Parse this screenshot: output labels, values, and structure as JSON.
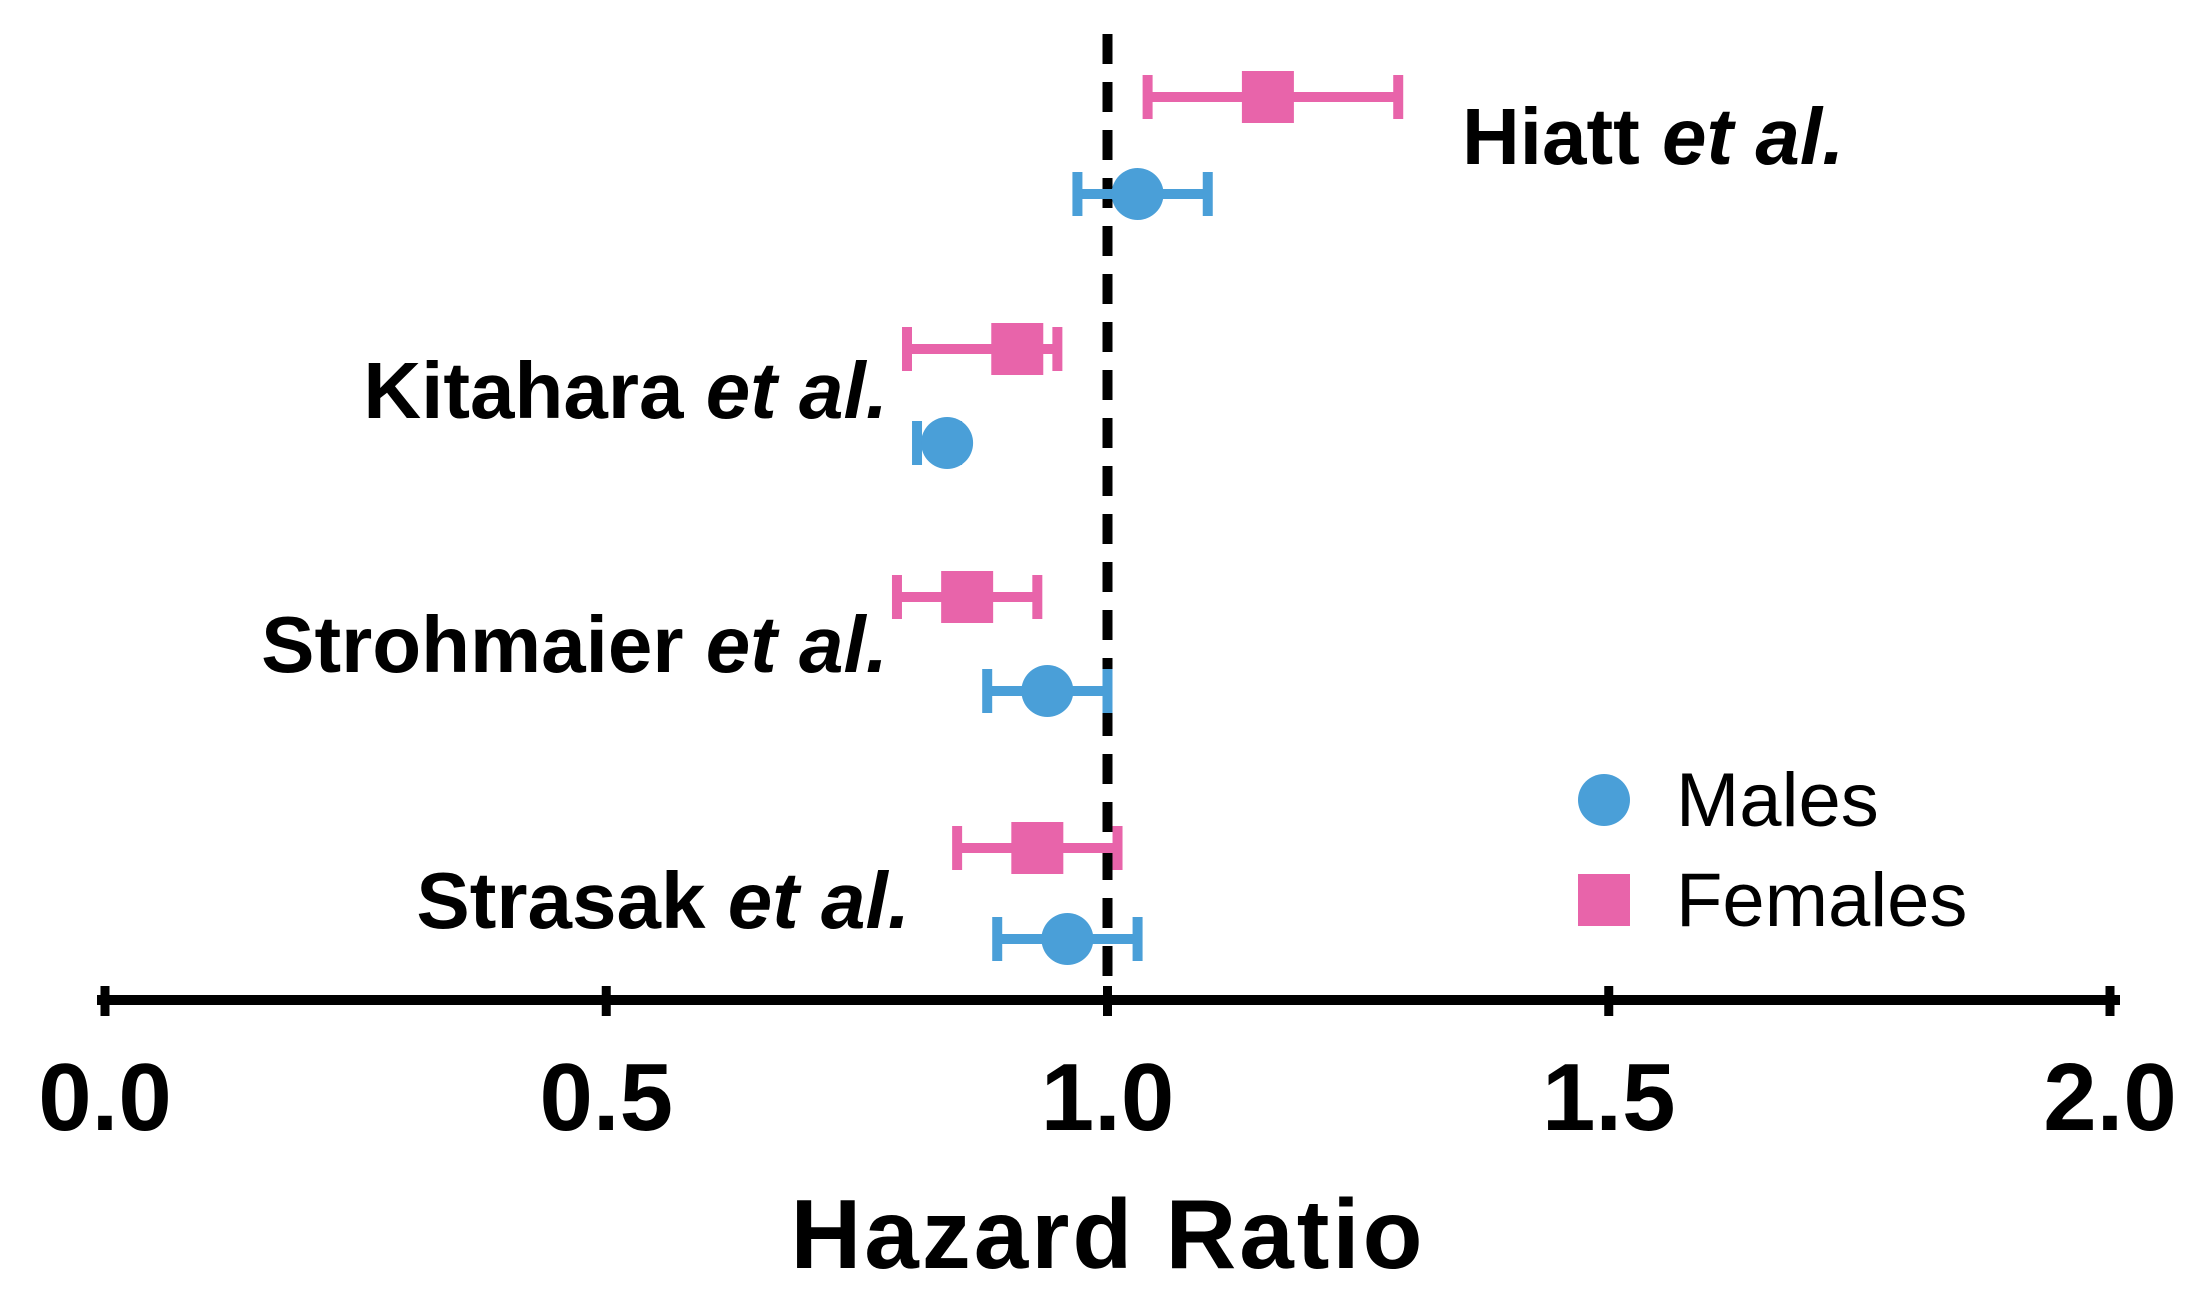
{
  "chart_data": {
    "type": "forest",
    "xlabel": "Hazard Ratio",
    "xlim": [
      0.0,
      2.0
    ],
    "x_ticks": [
      "0.0",
      "0.5",
      "1.0",
      "1.5",
      "2.0"
    ],
    "reference_line": 1.0,
    "legend_position": "bottom-right",
    "series": [
      {
        "name": "Males",
        "marker": "circle",
        "color": "#4A9FD8",
        "points": [
          {
            "study": "Hiatt",
            "hr": 1.03,
            "ci_low": 0.97,
            "ci_high": 1.1
          },
          {
            "study": "Kitahara",
            "hr": 0.84,
            "ci_low": 0.81,
            "ci_high": 0.85
          },
          {
            "study": "Strohmaier",
            "hr": 0.94,
            "ci_low": 0.88,
            "ci_high": 1.0
          },
          {
            "study": "Strasak",
            "hr": 0.96,
            "ci_low": 0.89,
            "ci_high": 1.03
          }
        ]
      },
      {
        "name": "Females",
        "marker": "square",
        "color": "#E864AA",
        "points": [
          {
            "study": "Hiatt",
            "hr": 1.16,
            "ci_low": 1.04,
            "ci_high": 1.29
          },
          {
            "study": "Kitahara",
            "hr": 0.91,
            "ci_low": 0.8,
            "ci_high": 0.95
          },
          {
            "study": "Strohmaier",
            "hr": 0.86,
            "ci_low": 0.79,
            "ci_high": 0.93
          },
          {
            "study": "Strasak",
            "hr": 0.93,
            "ci_low": 0.85,
            "ci_high": 1.01
          }
        ]
      }
    ],
    "studies": [
      {
        "name": "Hiatt",
        "suffix": "et al."
      },
      {
        "name": "Kitahara",
        "suffix": "et al."
      },
      {
        "name": "Strohmaier",
        "suffix": "et al."
      },
      {
        "name": "Strasak",
        "suffix": "et al."
      }
    ]
  }
}
